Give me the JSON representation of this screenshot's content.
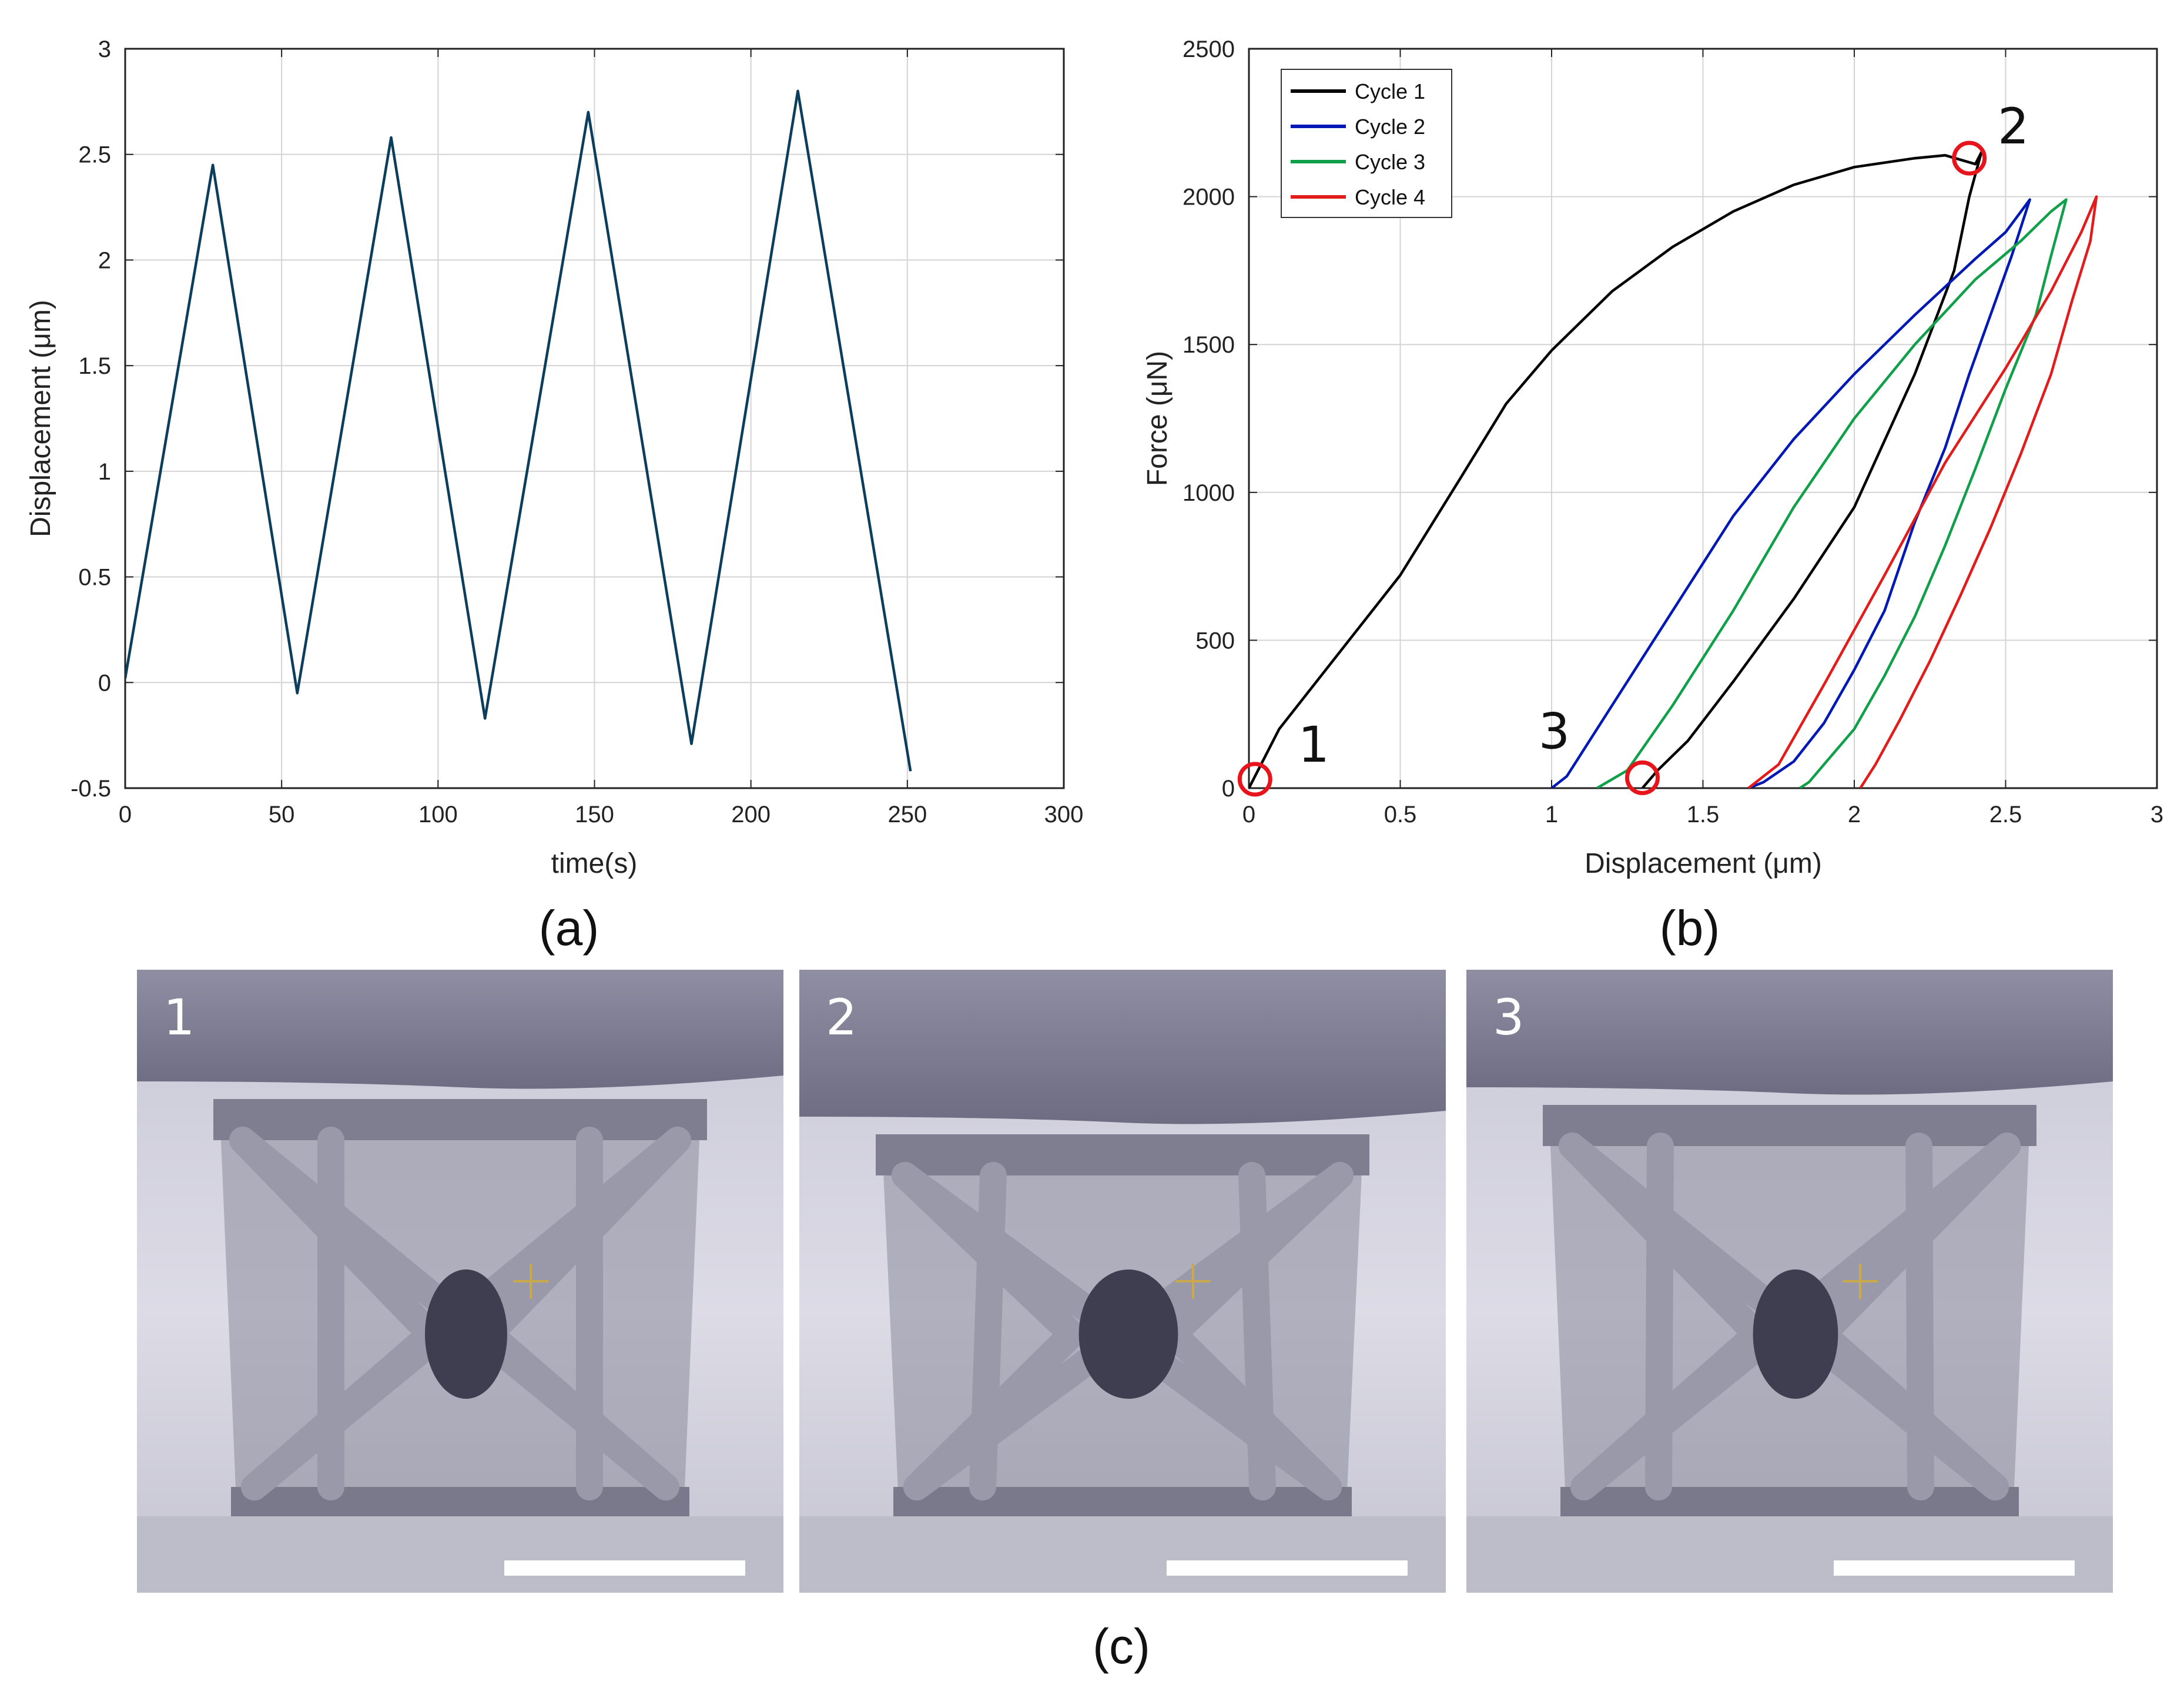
{
  "chart_data": [
    {
      "type": "line",
      "panel_label": "(a)",
      "xlabel": "time(s)",
      "ylabel": "Displacement (μm)",
      "xlim": [
        0,
        300
      ],
      "ylim": [
        -0.5,
        3
      ],
      "xticks": [
        "0",
        "50",
        "100",
        "150",
        "200",
        "250",
        "300"
      ],
      "yticks": [
        "-0.5",
        "0",
        "0.5",
        "1",
        "1.5",
        "2",
        "2.5",
        "3"
      ],
      "grid": true,
      "series": [
        {
          "name": "displacement",
          "color": "#0b3d5c",
          "x": [
            0,
            28,
            55,
            85,
            115,
            148,
            181,
            215,
            251
          ],
          "y": [
            0.02,
            2.45,
            -0.05,
            2.58,
            -0.17,
            2.7,
            -0.29,
            2.8,
            -0.42
          ]
        }
      ]
    },
    {
      "type": "line",
      "panel_label": "(b)",
      "xlabel": "Displacement (μm)",
      "ylabel": "Force (μN)",
      "xlim": [
        0,
        3
      ],
      "ylim": [
        0,
        2500
      ],
      "xticks": [
        "0",
        "0.5",
        "1",
        "1.5",
        "2",
        "2.5",
        "3"
      ],
      "yticks": [
        "0",
        "500",
        "1000",
        "1500",
        "2000",
        "2500"
      ],
      "grid": true,
      "legend_position": "top-left",
      "series": [
        {
          "name": "Cycle 1",
          "color": "#000000",
          "x": [
            0,
            0.1,
            0.3,
            0.5,
            0.7,
            0.85,
            1.0,
            1.2,
            1.4,
            1.6,
            1.8,
            2.0,
            2.2,
            2.3,
            2.4,
            2.42,
            2.38,
            2.33,
            2.2,
            2.0,
            1.8,
            1.6,
            1.45,
            1.35,
            1.3
          ],
          "y": [
            0,
            200,
            460,
            720,
            1050,
            1300,
            1480,
            1680,
            1830,
            1950,
            2040,
            2100,
            2130,
            2140,
            2110,
            2150,
            2000,
            1750,
            1400,
            950,
            640,
            360,
            160,
            60,
            0
          ]
        },
        {
          "name": "Cycle 2",
          "color": "#0019b5",
          "x": [
            1.0,
            1.05,
            1.2,
            1.4,
            1.6,
            1.8,
            2.0,
            2.2,
            2.4,
            2.5,
            2.58,
            2.52,
            2.45,
            2.38,
            2.3,
            2.2,
            2.1,
            2.0,
            1.9,
            1.8,
            1.7,
            1.65
          ],
          "y": [
            0,
            40,
            280,
            600,
            920,
            1180,
            1400,
            1600,
            1790,
            1880,
            1990,
            1800,
            1600,
            1400,
            1150,
            900,
            600,
            400,
            220,
            90,
            20,
            0
          ]
        },
        {
          "name": "Cycle 3",
          "color": "#10a049",
          "x": [
            1.15,
            1.25,
            1.4,
            1.6,
            1.8,
            2.0,
            2.2,
            2.4,
            2.55,
            2.65,
            2.7,
            2.65,
            2.6,
            2.5,
            2.4,
            2.3,
            2.2,
            2.1,
            2.0,
            1.9,
            1.85,
            1.82
          ],
          "y": [
            0,
            60,
            280,
            600,
            950,
            1250,
            1500,
            1720,
            1850,
            1950,
            1990,
            1800,
            1600,
            1350,
            1080,
            820,
            580,
            380,
            200,
            80,
            20,
            0
          ]
        },
        {
          "name": "Cycle 4",
          "color": "#e21b1b",
          "x": [
            1.65,
            1.75,
            1.9,
            2.1,
            2.3,
            2.5,
            2.65,
            2.75,
            2.8,
            2.78,
            2.72,
            2.65,
            2.55,
            2.45,
            2.35,
            2.25,
            2.15,
            2.07,
            2.02
          ],
          "y": [
            0,
            80,
            350,
            720,
            1100,
            1420,
            1680,
            1880,
            2000,
            1850,
            1650,
            1400,
            1130,
            880,
            650,
            430,
            230,
            80,
            0
          ]
        }
      ],
      "markers": [
        {
          "label": "1",
          "x": 0.02,
          "y": 30
        },
        {
          "label": "2",
          "x": 2.38,
          "y": 2130
        },
        {
          "label": "3",
          "x": 1.3,
          "y": 35
        }
      ],
      "marker_color": "#e8141c"
    }
  ],
  "figure": {
    "caption_c": "(c)",
    "sem_images": [
      {
        "label": "1",
        "state": "contact"
      },
      {
        "label": "2",
        "state": "compressed"
      },
      {
        "label": "3",
        "state": "unloaded"
      }
    ]
  }
}
